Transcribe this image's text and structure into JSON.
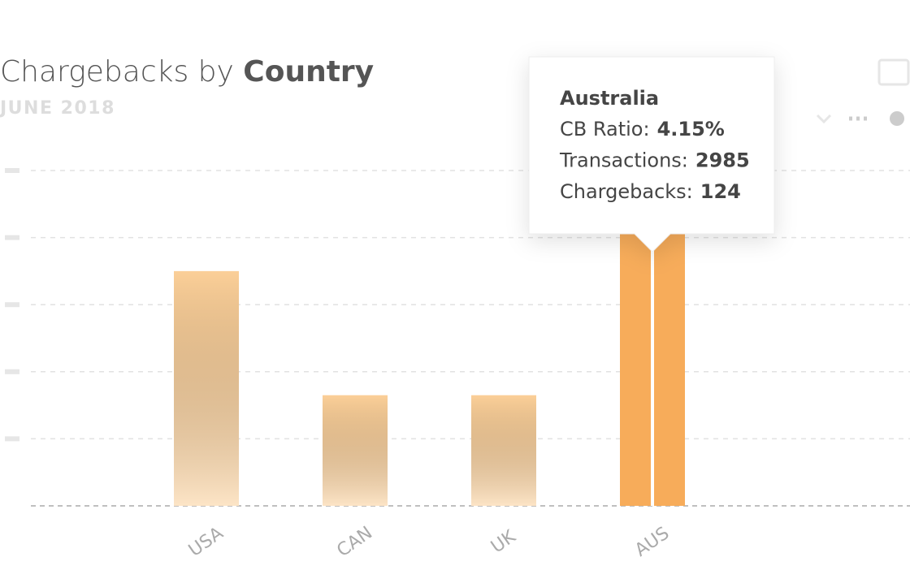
{
  "chart_data": {
    "type": "bar",
    "title": "Chargebacks by",
    "title_emphasis": "Country",
    "subtitle": "JUNE 2018",
    "categories": [
      "USA",
      "CAN",
      "UK",
      "AUS"
    ],
    "values": [
      3.5,
      1.65,
      1.65,
      4.15
    ],
    "color": "#fbcf98",
    "highlight_color": "#f7ac5a",
    "highlight_index": 3,
    "ylim": [
      0,
      5
    ],
    "yticks": [
      0,
      1,
      2,
      3,
      4,
      5
    ],
    "grid": true,
    "tooltip": {
      "category": "Australia",
      "items": [
        {
          "label": "CB Ratio:",
          "value": "4.15%"
        },
        {
          "label": "Transactions:",
          "value": 2985
        },
        {
          "label": "Chargebacks:",
          "value": 124
        }
      ]
    }
  }
}
